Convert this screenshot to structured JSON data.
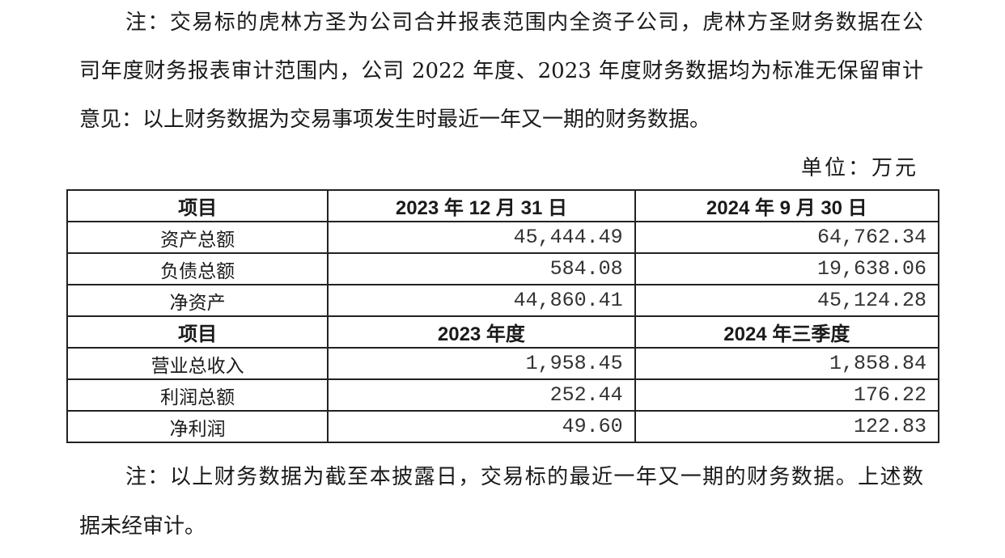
{
  "note_top": [
    "注：交易标的虎林方圣为公司合并报表范围内全资子公司，虎林方圣财务数据在公",
    "司年度财务报表审计范围内，公司 2022 年度、2023 年度财务数据均为标准无保留审计",
    "意见：以上财务数据为交易事项发生时最近一年又一期的财务数据。"
  ],
  "unit": "单位：万元",
  "table": {
    "header1": [
      "项目",
      "2023 年 12 月 31 日",
      "2024 年 9 月 30 日"
    ],
    "rows1": [
      [
        "资产总额",
        "45,444.49",
        "64,762.34"
      ],
      [
        "负债总额",
        "584.08",
        "19,638.06"
      ],
      [
        "净资产",
        "44,860.41",
        "45,124.28"
      ]
    ],
    "header2": [
      "项目",
      "2023 年度",
      "2024 年三季度"
    ],
    "rows2": [
      [
        "营业总收入",
        "1,958.45",
        "1,858.84"
      ],
      [
        "利润总额",
        "252.44",
        "176.22"
      ],
      [
        "净利润",
        "49.60",
        "122.83"
      ]
    ]
  },
  "note_bottom": [
    "注：以上财务数据为截至本披露日，交易标的最近一年又一期的财务数据。上述数",
    "据未经审计。"
  ]
}
